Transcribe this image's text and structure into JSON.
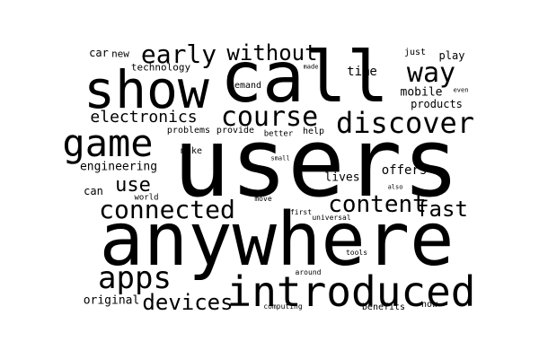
{
  "text_color": "#000000",
  "background_color": "#ffffff",
  "words": [
    "users",
    "anywhere",
    "call",
    "show",
    "introduced",
    "game",
    "discover",
    "course",
    "way",
    "early",
    "without",
    "connected",
    "content",
    "apps",
    "devices",
    "fast",
    "electronics",
    "use",
    "engineering",
    "time",
    "mobile",
    "offers",
    "lives",
    "products",
    "technology",
    "play",
    "car",
    "new",
    "just",
    "original",
    "can",
    "demand",
    "problems",
    "provide",
    "better",
    "help",
    "make",
    "world",
    "move",
    "first",
    "universal",
    "tools",
    "around",
    "computing",
    "benefits",
    "now",
    "even",
    "made",
    "small",
    "also"
  ]
}
